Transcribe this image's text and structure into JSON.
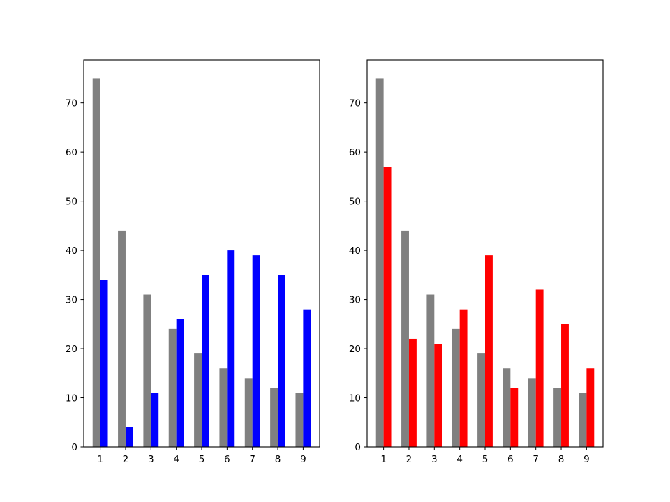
{
  "chart_data": [
    {
      "type": "bar",
      "categories": [
        "1",
        "2",
        "3",
        "4",
        "5",
        "6",
        "7",
        "8",
        "9"
      ],
      "series": [
        {
          "color": "#808080",
          "values": [
            75,
            44,
            31,
            24,
            19,
            16,
            14,
            12,
            11
          ]
        },
        {
          "color": "#0000ff",
          "values": [
            34,
            4,
            11,
            26,
            35,
            40,
            39,
            35,
            28
          ]
        }
      ],
      "yticks": [
        0,
        10,
        20,
        30,
        40,
        50,
        60,
        70
      ],
      "ylim": [
        0,
        78.75
      ],
      "title": "",
      "xlabel": "",
      "ylabel": "",
      "grid": false
    },
    {
      "type": "bar",
      "categories": [
        "1",
        "2",
        "3",
        "4",
        "5",
        "6",
        "7",
        "8",
        "9"
      ],
      "series": [
        {
          "color": "#808080",
          "values": [
            75,
            44,
            31,
            24,
            19,
            16,
            14,
            12,
            11
          ]
        },
        {
          "color": "#ff0000",
          "values": [
            57,
            22,
            21,
            28,
            39,
            12,
            32,
            25,
            16
          ]
        }
      ],
      "yticks": [
        0,
        10,
        20,
        30,
        40,
        50,
        60,
        70
      ],
      "ylim": [
        0,
        78.75
      ],
      "title": "",
      "xlabel": "",
      "ylabel": "",
      "grid": false
    }
  ]
}
